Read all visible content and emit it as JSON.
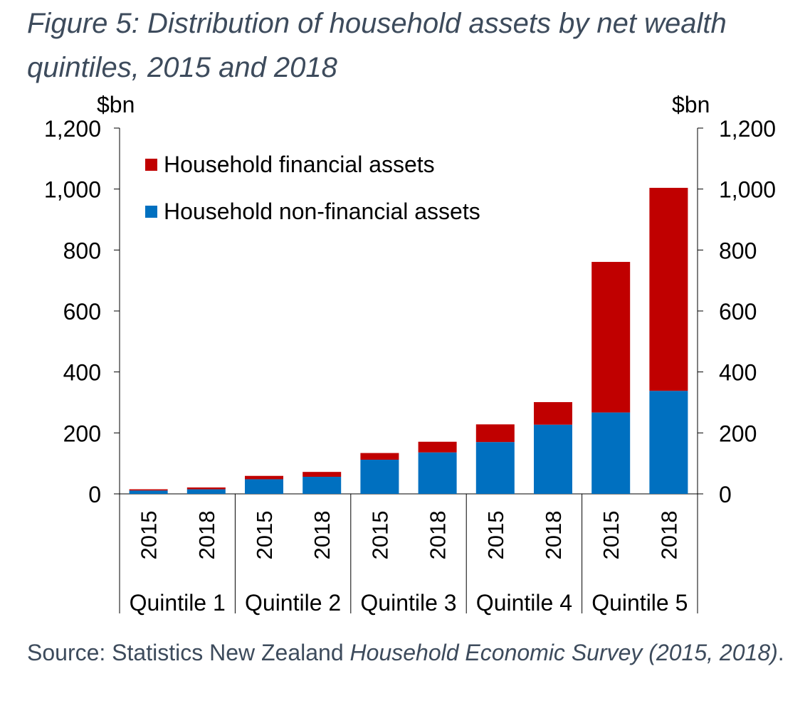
{
  "title": "Figure 5: Distribution of household assets by net wealth quintiles, 2015 and 2018",
  "source": {
    "prefix": "Source: Statistics New Zealand ",
    "italic": "Household Economic Survey (2015, 2018)",
    "suffix": "."
  },
  "chart_data": {
    "type": "bar",
    "stacked": true,
    "categories": [
      "2015",
      "2018",
      "2015",
      "2018",
      "2015",
      "2018",
      "2015",
      "2018",
      "2015",
      "2018"
    ],
    "groups": [
      "Quintile 1",
      "Quintile 2",
      "Quintile 3",
      "Quintile 4",
      "Quintile 5"
    ],
    "series": [
      {
        "name": "Household non-financial assets",
        "color": "#0070c0",
        "values": [
          11,
          15,
          48,
          56,
          112,
          136,
          170,
          227,
          267,
          338
        ]
      },
      {
        "name": "Household financial assets",
        "color": "#c00000",
        "values": [
          4,
          6,
          11,
          16,
          22,
          35,
          58,
          74,
          494,
          666
        ]
      }
    ],
    "ylabel_left": "$bn",
    "ylabel_right": "$bn",
    "ylim": [
      0,
      1200
    ],
    "yticks": [
      "0",
      "200",
      "400",
      "600",
      "800",
      "1,000",
      "1,200"
    ],
    "grid": false,
    "legend_position": "top-left"
  }
}
